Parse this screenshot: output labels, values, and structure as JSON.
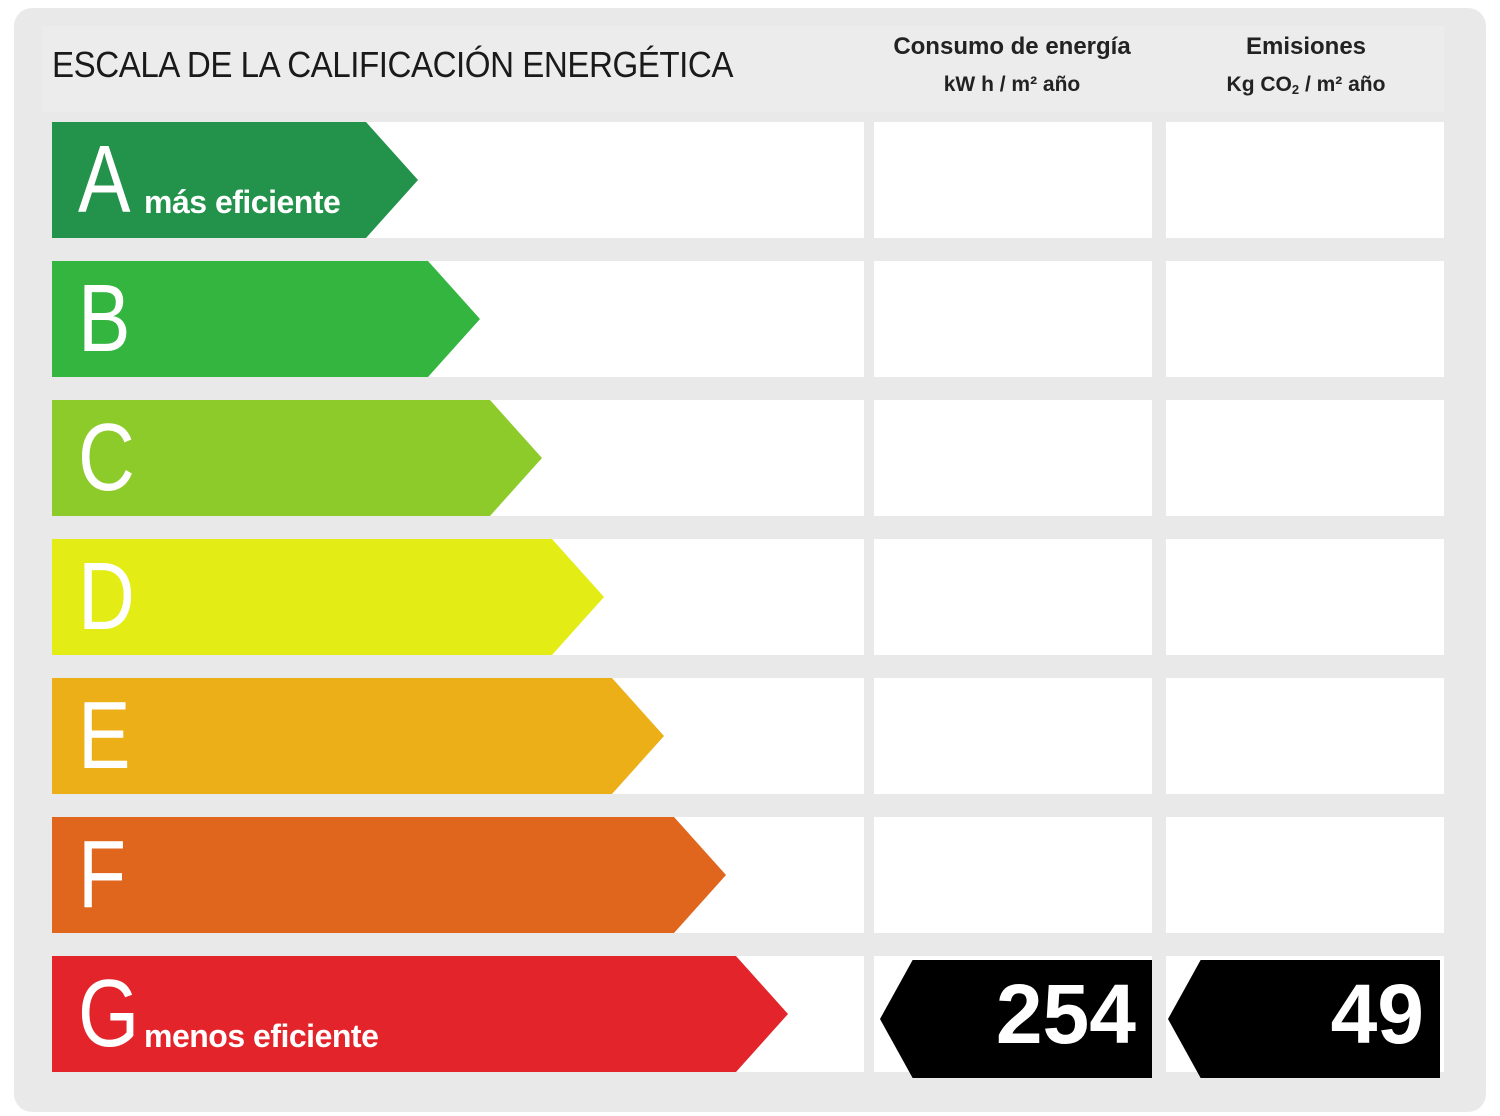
{
  "title": "ESCALA DE LA CALIFICACIÓN ENERGÉTICA",
  "columns": {
    "energy": {
      "title": "Consumo de energía",
      "unit": "kW h / m² año"
    },
    "emissions": {
      "title": "Emisiones",
      "unit_prefix": "Kg CO",
      "unit_sub": "2",
      "unit_suffix": " / m² año"
    }
  },
  "classes": [
    {
      "letter": "A",
      "label": "más eficiente",
      "color": "#23924a"
    },
    {
      "letter": "B",
      "label": "",
      "color": "#33b540"
    },
    {
      "letter": "C",
      "label": "",
      "color": "#8dcb2a"
    },
    {
      "letter": "D",
      "label": "",
      "color": "#e4ec15"
    },
    {
      "letter": "E",
      "label": "",
      "color": "#ecaf17"
    },
    {
      "letter": "F",
      "label": "",
      "color": "#e0661d"
    },
    {
      "letter": "G",
      "label": "menos eficiente",
      "color": "#e3242b"
    }
  ],
  "rating": {
    "class": "G",
    "energy_value": "254",
    "emissions_value": "49",
    "badge_color": "#000000"
  }
}
